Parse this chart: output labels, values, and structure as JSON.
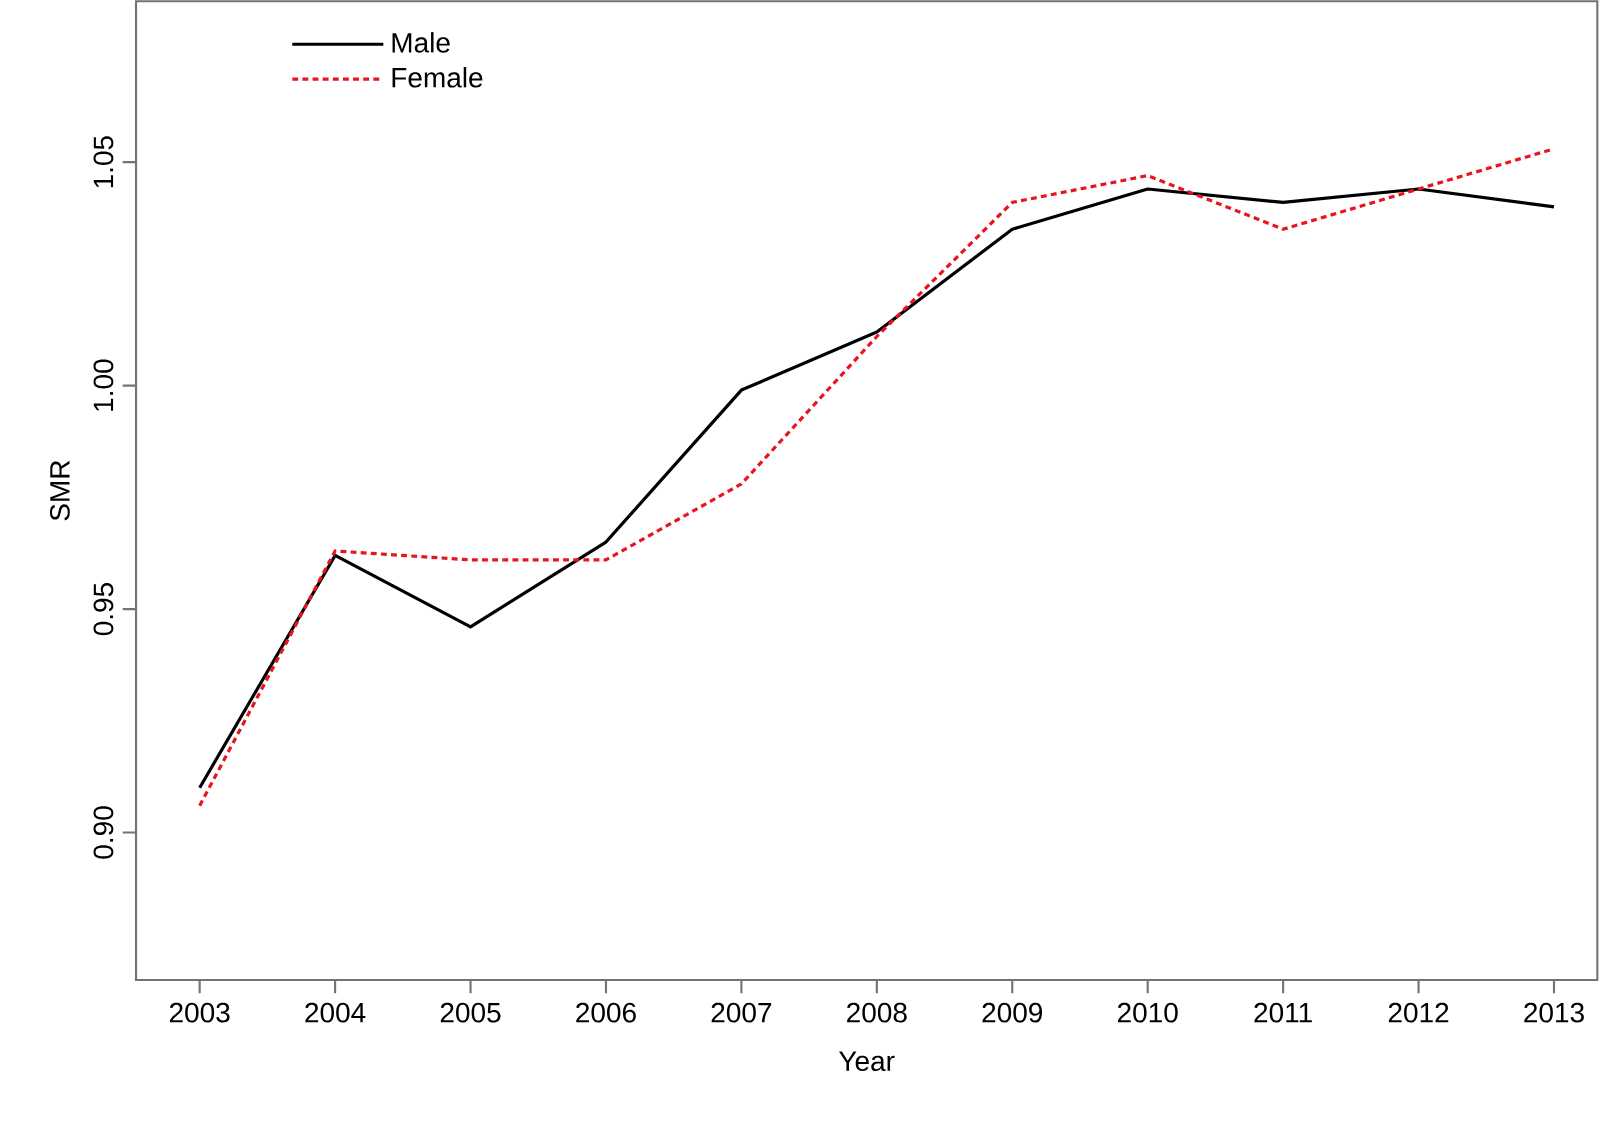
{
  "chart_data": {
    "type": "line",
    "xlabel": "Year",
    "ylabel": "SMR",
    "x": [
      2003,
      2004,
      2005,
      2006,
      2007,
      2008,
      2009,
      2010,
      2011,
      2012,
      2013
    ],
    "series": [
      {
        "name": "Male",
        "color": "#000000",
        "line_style": "solid",
        "values": [
          0.91,
          0.962,
          0.946,
          0.965,
          0.999,
          1.012,
          1.035,
          1.044,
          1.041,
          1.044,
          1.04
        ]
      },
      {
        "name": "Female",
        "color": "#e8141e",
        "line_style": "dotted",
        "values": [
          0.906,
          0.963,
          0.961,
          0.961,
          0.978,
          1.011,
          1.041,
          1.047,
          1.035,
          1.044,
          1.053
        ]
      }
    ],
    "xlim": [
      2002.53,
      2013.32
    ],
    "ylim": [
      0.867,
      1.086
    ],
    "xticks": [
      2003,
      2004,
      2005,
      2006,
      2007,
      2008,
      2009,
      2010,
      2011,
      2012,
      2013
    ],
    "yticks": [
      {
        "value": 0.9,
        "label": "0.90"
      },
      {
        "value": 0.95,
        "label": "0.95"
      },
      {
        "value": 1.0,
        "label": "1.00"
      },
      {
        "value": 1.05,
        "label": "1.05"
      }
    ],
    "grid": false,
    "legend": "top left",
    "marker": "none"
  }
}
